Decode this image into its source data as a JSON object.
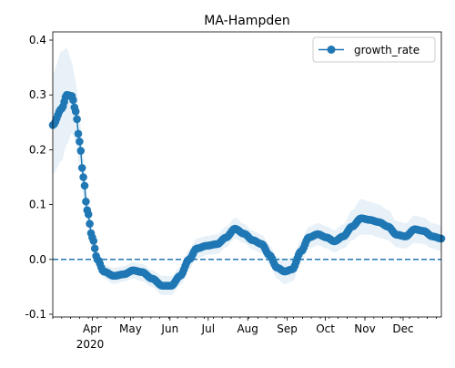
{
  "chart_data": {
    "type": "line",
    "title": "MA-Hampden",
    "xlabel": "",
    "ylabel": "",
    "xlim": [
      "2020-03-01",
      "2020-12-31"
    ],
    "ylim": [
      -0.105,
      0.415
    ],
    "grid": false,
    "legend": "top-right",
    "reference_line": {
      "y": 0.0,
      "style": "dashed",
      "color": "#1f77b4"
    },
    "y_ticks": [
      {
        "value": -0.1,
        "label": "-0.1"
      },
      {
        "value": 0.0,
        "label": "0.0"
      },
      {
        "value": 0.1,
        "label": "0.1"
      },
      {
        "value": 0.2,
        "label": "0.2"
      },
      {
        "value": 0.3,
        "label": "0.3"
      },
      {
        "value": 0.4,
        "label": "0.4"
      }
    ],
    "x_ticks": [
      {
        "date": "2020-04-01",
        "label": "Apr"
      },
      {
        "date": "2020-05-01",
        "label": "May"
      },
      {
        "date": "2020-06-01",
        "label": "Jun"
      },
      {
        "date": "2020-07-01",
        "label": "Jul"
      },
      {
        "date": "2020-08-01",
        "label": "Aug"
      },
      {
        "date": "2020-09-01",
        "label": "Sep"
      },
      {
        "date": "2020-10-01",
        "label": "Oct"
      },
      {
        "date": "2020-11-01",
        "label": "Nov"
      },
      {
        "date": "2020-12-01",
        "label": "Dec"
      }
    ],
    "year_label": "2020",
    "series": [
      {
        "name": "growth_rate",
        "color": "#1f77b4",
        "band_color": "#1f77b4",
        "marker": "circle",
        "keypoints": [
          [
            "2020-03-01",
            0.245,
            0.155,
            0.34
          ],
          [
            "2020-03-08",
            0.275,
            0.18,
            0.38
          ],
          [
            "2020-03-12",
            0.3,
            0.21,
            0.385
          ],
          [
            "2020-03-16",
            0.298,
            0.23,
            0.36
          ],
          [
            "2020-03-19",
            0.27,
            0.215,
            0.325
          ],
          [
            "2020-03-22",
            0.215,
            0.17,
            0.26
          ],
          [
            "2020-03-25",
            0.15,
            0.115,
            0.185
          ],
          [
            "2020-03-28",
            0.09,
            0.065,
            0.115
          ],
          [
            "2020-04-01",
            0.04,
            0.02,
            0.06
          ],
          [
            "2020-04-05",
            0.0,
            -0.015,
            0.015
          ],
          [
            "2020-04-10",
            -0.022,
            -0.035,
            -0.01
          ],
          [
            "2020-04-18",
            -0.03,
            -0.045,
            -0.015
          ],
          [
            "2020-04-26",
            -0.027,
            -0.04,
            -0.012
          ],
          [
            "2020-05-03",
            -0.02,
            -0.035,
            -0.005
          ],
          [
            "2020-05-10",
            -0.023,
            -0.04,
            -0.008
          ],
          [
            "2020-05-18",
            -0.035,
            -0.05,
            -0.02
          ],
          [
            "2020-05-26",
            -0.048,
            -0.065,
            -0.03
          ],
          [
            "2020-06-02",
            -0.048,
            -0.065,
            -0.03
          ],
          [
            "2020-06-09",
            -0.03,
            -0.047,
            -0.013
          ],
          [
            "2020-06-16",
            0.0,
            -0.018,
            0.018
          ],
          [
            "2020-06-22",
            0.02,
            0.002,
            0.038
          ],
          [
            "2020-06-30",
            0.025,
            0.008,
            0.043
          ],
          [
            "2020-07-08",
            0.028,
            0.01,
            0.046
          ],
          [
            "2020-07-15",
            0.04,
            0.022,
            0.06
          ],
          [
            "2020-07-22",
            0.056,
            0.038,
            0.076
          ],
          [
            "2020-07-29",
            0.047,
            0.03,
            0.065
          ],
          [
            "2020-08-05",
            0.035,
            0.018,
            0.052
          ],
          [
            "2020-08-12",
            0.028,
            0.011,
            0.045
          ],
          [
            "2020-08-18",
            0.008,
            -0.01,
            0.026
          ],
          [
            "2020-08-24",
            -0.015,
            -0.035,
            0.005
          ],
          [
            "2020-08-30",
            -0.022,
            -0.045,
            0.0
          ],
          [
            "2020-09-05",
            -0.018,
            -0.04,
            0.004
          ],
          [
            "2020-09-12",
            0.015,
            -0.005,
            0.035
          ],
          [
            "2020-09-18",
            0.04,
            0.02,
            0.06
          ],
          [
            "2020-09-25",
            0.046,
            0.026,
            0.066
          ],
          [
            "2020-10-02",
            0.04,
            0.02,
            0.06
          ],
          [
            "2020-10-08",
            0.033,
            0.013,
            0.053
          ],
          [
            "2020-10-15",
            0.042,
            0.02,
            0.064
          ],
          [
            "2020-10-22",
            0.06,
            0.035,
            0.09
          ],
          [
            "2020-10-29",
            0.075,
            0.045,
            0.11
          ],
          [
            "2020-11-05",
            0.072,
            0.045,
            0.105
          ],
          [
            "2020-11-12",
            0.068,
            0.04,
            0.1
          ],
          [
            "2020-11-19",
            0.06,
            0.035,
            0.09
          ],
          [
            "2020-11-26",
            0.045,
            0.022,
            0.07
          ],
          [
            "2020-12-03",
            0.042,
            0.02,
            0.066
          ],
          [
            "2020-12-10",
            0.055,
            0.03,
            0.08
          ],
          [
            "2020-12-17",
            0.052,
            0.028,
            0.076
          ],
          [
            "2020-12-24",
            0.042,
            0.02,
            0.066
          ],
          [
            "2020-12-31",
            0.038,
            0.015,
            0.062
          ]
        ]
      }
    ]
  }
}
